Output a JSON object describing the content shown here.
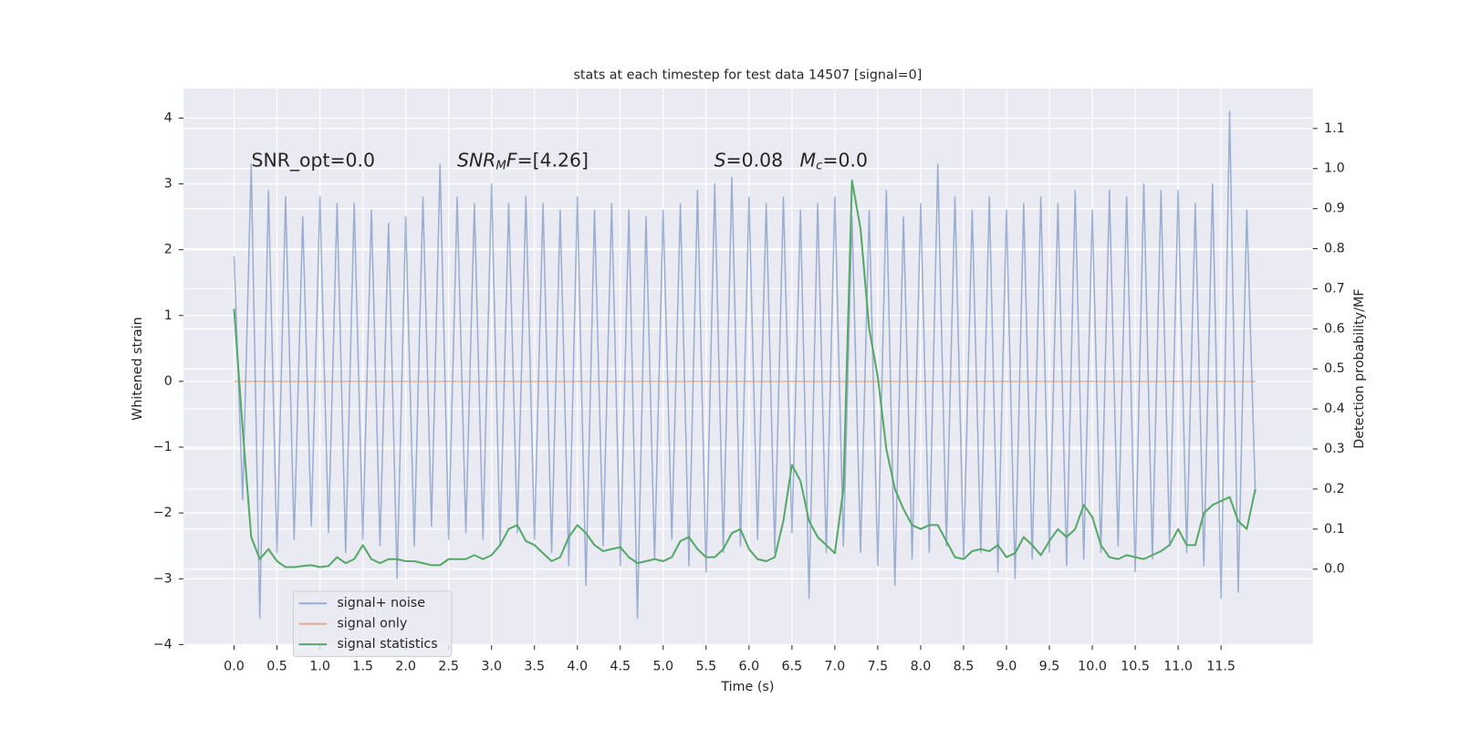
{
  "chart_data": {
    "type": "line",
    "title": "stats at each timestep for test data 14507 [signal=0]",
    "xlabel": "Time (s)",
    "ylabel": "Whitened strain",
    "y2label": "Detection probability/MF",
    "xlim": [
      -0.59,
      12.57
    ],
    "ylim": [
      -4.01,
      4.45
    ],
    "y2lim": [
      -0.19,
      1.2
    ],
    "grid": true,
    "legend": "lower left",
    "xticks": [
      {
        "value": 0,
        "label": "0.0"
      },
      {
        "value": 0.5,
        "label": "0.5"
      },
      {
        "value": 1,
        "label": "1.0"
      },
      {
        "value": 1.5,
        "label": "1.5"
      },
      {
        "value": 2,
        "label": "2.0"
      },
      {
        "value": 2.5,
        "label": "2.5"
      },
      {
        "value": 3,
        "label": "3.0"
      },
      {
        "value": 3.5,
        "label": "3.5"
      },
      {
        "value": 4,
        "label": "4.0"
      },
      {
        "value": 4.5,
        "label": "4.5"
      },
      {
        "value": 5,
        "label": "5.0"
      },
      {
        "value": 5.5,
        "label": "5.5"
      },
      {
        "value": 6,
        "label": "6.0"
      },
      {
        "value": 6.5,
        "label": "6.5"
      },
      {
        "value": 7,
        "label": "7.0"
      },
      {
        "value": 7.5,
        "label": "7.5"
      },
      {
        "value": 8,
        "label": "8.0"
      },
      {
        "value": 8.5,
        "label": "8.5"
      },
      {
        "value": 9,
        "label": "9.0"
      },
      {
        "value": 9.5,
        "label": "9.5"
      },
      {
        "value": 10,
        "label": "10.0"
      },
      {
        "value": 10.5,
        "label": "10.5"
      },
      {
        "value": 11,
        "label": "11.0"
      },
      {
        "value": 11.5,
        "label": "11.5"
      }
    ],
    "yticks": [
      {
        "value": -4,
        "label": "−4"
      },
      {
        "value": -3,
        "label": "−3"
      },
      {
        "value": -2,
        "label": "−2"
      },
      {
        "value": -1,
        "label": "−1"
      },
      0,
      1,
      2,
      3,
      4
    ],
    "y2ticks": [
      {
        "value": 0,
        "label": "0.0"
      },
      {
        "value": 0.1,
        "label": "0.1"
      },
      {
        "value": 0.2,
        "label": "0.2"
      },
      {
        "value": 0.3,
        "label": "0.3"
      },
      {
        "value": 0.4,
        "label": "0.4"
      },
      {
        "value": 0.5,
        "label": "0.5"
      },
      {
        "value": 0.6,
        "label": "0.6"
      },
      {
        "value": 0.7,
        "label": "0.7"
      },
      {
        "value": 0.8,
        "label": "0.8"
      },
      {
        "value": 0.9,
        "label": "0.9"
      },
      {
        "value": 1,
        "label": "1.0"
      },
      {
        "value": 1.1,
        "label": "1.1"
      }
    ],
    "annotations": [
      {
        "parts": [
          {
            "text": "SNR_opt=0.0"
          }
        ]
      },
      {
        "parts": [
          {
            "text": "SNR",
            "italic": true
          },
          {
            "text": "M",
            "italic": true,
            "sub": true
          },
          {
            "text": "F",
            "italic": true
          },
          {
            "text": "=[4.26]"
          }
        ]
      },
      {
        "parts": [
          {
            "text": "S",
            "italic": true
          },
          {
            "text": "=0.08"
          }
        ]
      },
      {
        "parts": [
          {
            "text": "M",
            "italic": true
          },
          {
            "text": "c",
            "italic": true,
            "sub": true
          },
          {
            "text": "=0.0"
          }
        ]
      }
    ],
    "series": [
      {
        "name": "signal+ noise",
        "color": "#4c72b0",
        "opacity": 0.5,
        "x": [
          0,
          0.1,
          0.2,
          0.3,
          0.4,
          0.5,
          0.6,
          0.7,
          0.8,
          0.9,
          1,
          1.1,
          1.2,
          1.3,
          1.4,
          1.5,
          1.6,
          1.7,
          1.8,
          1.9,
          2,
          2.1,
          2.2,
          2.3,
          2.4,
          2.5,
          2.6,
          2.7,
          2.8,
          2.9,
          3,
          3.1,
          3.2,
          3.3,
          3.4,
          3.5,
          3.6,
          3.7,
          3.8,
          3.9,
          4,
          4.1,
          4.2,
          4.3,
          4.4,
          4.5,
          4.6,
          4.7,
          4.8,
          4.9,
          5,
          5.1,
          5.2,
          5.3,
          5.4,
          5.5,
          5.6,
          5.7,
          5.8,
          5.9,
          6,
          6.1,
          6.2,
          6.3,
          6.4,
          6.5,
          6.6,
          6.7,
          6.8,
          6.9,
          7,
          7.1,
          7.2,
          7.3,
          7.4,
          7.5,
          7.6,
          7.7,
          7.8,
          7.9,
          8,
          8.1,
          8.2,
          8.3,
          8.4,
          8.5,
          8.6,
          8.7,
          8.8,
          8.9,
          9,
          9.1,
          9.2,
          9.3,
          9.4,
          9.5,
          9.6,
          9.7,
          9.8,
          9.9,
          10,
          10.1,
          10.2,
          10.3,
          10.4,
          10.5,
          10.6,
          10.7,
          10.8,
          10.9,
          11,
          11.1,
          11.2,
          11.3,
          11.4,
          11.5,
          11.6,
          11.7,
          11.8,
          11.9
        ],
        "values": [
          1.9,
          -1.8,
          3.3,
          -3.6,
          2.9,
          -2.6,
          2.8,
          -2.4,
          2.5,
          -2.2,
          2.8,
          -2.3,
          2.7,
          -2.6,
          2.7,
          -2.4,
          2.6,
          -2.5,
          2.4,
          -3.0,
          2.5,
          -2.5,
          2.8,
          -2.2,
          3.3,
          -2.4,
          2.8,
          -2.3,
          2.7,
          -2.4,
          3.0,
          -2.5,
          2.7,
          -2.3,
          2.8,
          -2.4,
          2.7,
          -2.6,
          2.6,
          -2.8,
          2.8,
          -3.1,
          2.6,
          -2.5,
          2.7,
          -2.8,
          2.6,
          -3.6,
          2.5,
          -2.7,
          2.6,
          -2.4,
          2.7,
          -2.8,
          2.9,
          -2.9,
          3.0,
          -2.6,
          3.1,
          -2.5,
          2.8,
          -2.4,
          2.7,
          -2.6,
          2.8,
          -2.3,
          2.6,
          -3.3,
          2.7,
          -2.6,
          2.8,
          -2.5,
          2.5,
          -2.6,
          2.6,
          -2.8,
          2.9,
          -3.1,
          2.5,
          -2.7,
          2.7,
          -2.6,
          3.3,
          -2.5,
          2.8,
          -2.7,
          2.6,
          -2.6,
          2.8,
          -2.9,
          2.6,
          -3.0,
          2.7,
          -2.7,
          2.8,
          -2.6,
          2.7,
          -2.8,
          2.9,
          -2.7,
          2.6,
          -2.6,
          2.9,
          -2.5,
          2.8,
          -2.9,
          3.0,
          -2.7,
          2.9,
          -2.5,
          2.9,
          -2.6,
          2.7,
          -2.8,
          3.0,
          -3.3,
          4.1,
          -3.2,
          2.6,
          -1.7
        ]
      },
      {
        "name": "signal only",
        "color": "#dd8452",
        "opacity": 0.6,
        "x": [
          0,
          11.9
        ],
        "values": [
          0,
          0
        ]
      },
      {
        "name": "signal statistics",
        "color": "#55a868",
        "opacity": 1,
        "axis": "y2",
        "x": [
          0,
          0.1,
          0.2,
          0.3,
          0.4,
          0.5,
          0.6,
          0.7,
          0.8,
          0.9,
          1,
          1.1,
          1.2,
          1.3,
          1.4,
          1.5,
          1.6,
          1.7,
          1.8,
          1.9,
          2,
          2.1,
          2.2,
          2.3,
          2.4,
          2.5,
          2.6,
          2.7,
          2.8,
          2.9,
          3,
          3.1,
          3.2,
          3.3,
          3.4,
          3.5,
          3.6,
          3.7,
          3.8,
          3.9,
          4,
          4.1,
          4.2,
          4.3,
          4.4,
          4.5,
          4.6,
          4.7,
          4.8,
          4.9,
          5,
          5.1,
          5.2,
          5.3,
          5.4,
          5.5,
          5.6,
          5.7,
          5.8,
          5.9,
          6,
          6.1,
          6.2,
          6.3,
          6.4,
          6.5,
          6.6,
          6.7,
          6.8,
          6.9,
          7,
          7.1,
          7.2,
          7.3,
          7.4,
          7.5,
          7.6,
          7.7,
          7.8,
          7.9,
          8,
          8.1,
          8.2,
          8.3,
          8.4,
          8.5,
          8.6,
          8.7,
          8.8,
          8.9,
          9,
          9.1,
          9.2,
          9.3,
          9.4,
          9.5,
          9.6,
          9.7,
          9.8,
          9.9,
          10,
          10.1,
          10.2,
          10.3,
          10.4,
          10.5,
          10.6,
          10.7,
          10.8,
          10.9,
          11,
          11.1,
          11.2,
          11.3,
          11.4,
          11.5,
          11.6,
          11.7,
          11.8,
          11.9
        ],
        "values": [
          0.65,
          0.35,
          0.08,
          0.025,
          0.05,
          0.02,
          0.005,
          0.005,
          0.008,
          0.01,
          0.005,
          0.008,
          0.03,
          0.015,
          0.025,
          0.06,
          0.025,
          0.015,
          0.025,
          0.025,
          0.02,
          0.02,
          0.015,
          0.01,
          0.01,
          0.025,
          0.025,
          0.025,
          0.035,
          0.025,
          0.035,
          0.06,
          0.1,
          0.11,
          0.07,
          0.06,
          0.04,
          0.02,
          0.03,
          0.08,
          0.11,
          0.09,
          0.06,
          0.045,
          0.05,
          0.055,
          0.03,
          0.015,
          0.02,
          0.025,
          0.02,
          0.03,
          0.07,
          0.08,
          0.05,
          0.03,
          0.03,
          0.05,
          0.09,
          0.1,
          0.05,
          0.025,
          0.02,
          0.03,
          0.12,
          0.26,
          0.22,
          0.12,
          0.08,
          0.06,
          0.04,
          0.2,
          0.97,
          0.85,
          0.6,
          0.48,
          0.3,
          0.2,
          0.15,
          0.11,
          0.1,
          0.11,
          0.11,
          0.07,
          0.03,
          0.025,
          0.045,
          0.05,
          0.045,
          0.06,
          0.03,
          0.04,
          0.08,
          0.06,
          0.035,
          0.07,
          0.1,
          0.08,
          0.1,
          0.16,
          0.13,
          0.06,
          0.03,
          0.025,
          0.035,
          0.03,
          0.025,
          0.035,
          0.045,
          0.06,
          0.1,
          0.06,
          0.06,
          0.14,
          0.16,
          0.17,
          0.18,
          0.12,
          0.1,
          0.2
        ]
      }
    ]
  }
}
